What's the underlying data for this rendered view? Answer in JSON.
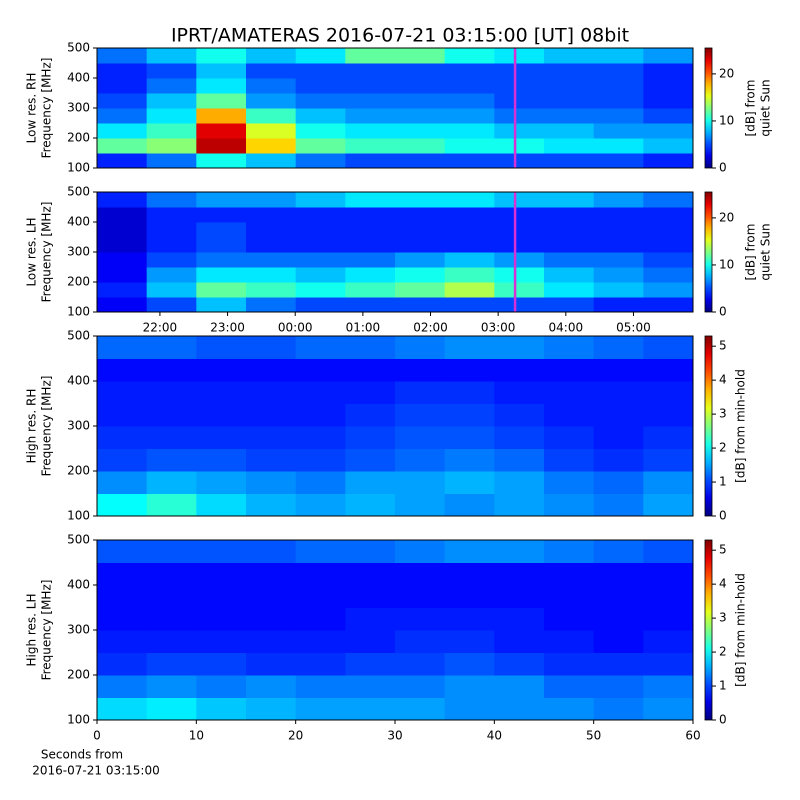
{
  "title": "IPRT/AMATERAS 2016-07-21 03:15:00 [UT]   08bit",
  "chart_data": [
    {
      "type": "heatmap",
      "ylabel": [
        "Low res. RH",
        "Frequency [MHz]"
      ],
      "xlim": [
        21.07,
        29.88
      ],
      "ylim": [
        100,
        500
      ],
      "yticks": [
        100,
        200,
        300,
        400,
        500
      ],
      "marker_x": 27.25,
      "marker_color": "#d630d6",
      "colormap": "jet",
      "clim": [
        0,
        25.5
      ],
      "cticks": [
        0,
        10,
        20
      ],
      "colorbar_label": [
        "[dB] from",
        "quiet Sun"
      ],
      "z": [
        [
          4,
          6,
          10,
          8,
          6,
          5,
          5,
          5,
          5,
          5,
          5,
          4
        ],
        [
          12,
          13,
          24,
          17,
          12,
          11,
          11,
          10,
          10,
          9,
          9,
          8
        ],
        [
          9,
          11,
          23,
          15,
          10,
          9,
          9,
          9,
          8,
          8,
          7,
          7
        ],
        [
          6,
          9,
          18,
          11,
          8,
          7,
          7,
          7,
          6,
          6,
          6,
          5
        ],
        [
          5,
          8,
          12,
          7,
          6,
          6,
          6,
          6,
          5,
          5,
          5,
          4
        ],
        [
          4,
          6,
          9,
          6,
          5,
          5,
          5,
          5,
          5,
          5,
          5,
          4
        ],
        [
          4,
          5,
          8,
          5,
          5,
          5,
          5,
          5,
          5,
          5,
          5,
          4
        ],
        [
          6,
          8,
          10,
          8,
          9,
          12,
          12,
          10,
          9,
          8,
          8,
          7
        ]
      ]
    },
    {
      "type": "heatmap",
      "ylabel": [
        "Low res. LH",
        "Frequency [MHz]"
      ],
      "xlim": [
        21.07,
        29.88
      ],
      "ylim": [
        100,
        500
      ],
      "yticks": [
        100,
        200,
        300,
        400,
        500
      ],
      "xticks": [
        {
          "value": 22,
          "label": "22:00"
        },
        {
          "value": 23,
          "label": "23:00"
        },
        {
          "value": 24,
          "label": "00:00"
        },
        {
          "value": 25,
          "label": "01:00"
        },
        {
          "value": 26,
          "label": "02:00"
        },
        {
          "value": 27,
          "label": "03:00"
        },
        {
          "value": 28,
          "label": "04:00"
        },
        {
          "value": 29,
          "label": "05:00"
        }
      ],
      "marker_x": 27.25,
      "marker_color": "#d630d6",
      "colormap": "jet",
      "clim": [
        0,
        25.5
      ],
      "cticks": [
        0,
        10,
        20
      ],
      "colorbar_label": [
        "[dB] from",
        "quiet Sun"
      ],
      "z": [
        [
          3,
          5,
          8,
          6,
          5,
          5,
          5,
          5,
          5,
          5,
          4,
          4
        ],
        [
          4,
          8,
          12,
          11,
          10,
          11,
          12,
          14,
          11,
          9,
          8,
          7
        ],
        [
          3,
          7,
          9,
          9,
          8,
          9,
          10,
          11,
          10,
          8,
          7,
          6
        ],
        [
          3,
          5,
          6,
          6,
          6,
          6,
          7,
          8,
          7,
          6,
          6,
          5
        ],
        [
          2,
          4,
          5,
          4,
          4,
          4,
          4,
          4,
          4,
          4,
          4,
          4
        ],
        [
          2,
          4,
          5,
          4,
          4,
          4,
          4,
          4,
          4,
          4,
          4,
          4
        ],
        [
          2,
          4,
          4,
          4,
          4,
          4,
          4,
          4,
          4,
          4,
          4,
          4
        ],
        [
          4,
          6,
          7,
          7,
          8,
          9,
          9,
          9,
          8,
          8,
          7,
          6
        ]
      ]
    },
    {
      "type": "heatmap",
      "ylabel": [
        "High res. RH",
        "Frequency [MHz]"
      ],
      "xlim": [
        0,
        60
      ],
      "ylim": [
        100,
        500
      ],
      "yticks": [
        100,
        200,
        300,
        400,
        500
      ],
      "colormap": "jet",
      "clim": [
        0,
        5.3
      ],
      "cticks": [
        0,
        1,
        2,
        3,
        4,
        5
      ],
      "colorbar_label": [
        "[dB] from min-hold"
      ],
      "z": [
        [
          2.0,
          2.2,
          1.8,
          1.6,
          1.5,
          1.6,
          1.5,
          1.4,
          1.5,
          1.4,
          1.3,
          1.5
        ],
        [
          1.4,
          1.6,
          1.5,
          1.4,
          1.3,
          1.5,
          1.5,
          1.6,
          1.5,
          1.3,
          1.2,
          1.4
        ],
        [
          1.0,
          1.1,
          1.1,
          1.0,
          1.0,
          1.1,
          1.2,
          1.3,
          1.2,
          1.0,
          0.9,
          1.0
        ],
        [
          0.9,
          0.9,
          0.9,
          0.9,
          0.9,
          1.0,
          1.1,
          1.1,
          1.0,
          0.9,
          0.8,
          0.9
        ],
        [
          0.8,
          0.8,
          0.8,
          0.8,
          0.8,
          0.9,
          1.0,
          1.0,
          0.9,
          0.8,
          0.8,
          0.8
        ],
        [
          0.8,
          0.8,
          0.8,
          0.8,
          0.8,
          0.8,
          0.9,
          0.9,
          0.8,
          0.8,
          0.8,
          0.8
        ],
        [
          0.7,
          0.7,
          0.7,
          0.7,
          0.7,
          0.7,
          0.7,
          0.7,
          0.7,
          0.7,
          0.7,
          0.7
        ],
        [
          1.2,
          1.2,
          1.1,
          1.1,
          1.2,
          1.2,
          1.3,
          1.4,
          1.4,
          1.3,
          1.2,
          1.1
        ]
      ]
    },
    {
      "type": "heatmap",
      "ylabel": [
        "High res. LH",
        "Frequency [MHz]"
      ],
      "xlim": [
        0,
        60
      ],
      "ylim": [
        100,
        500
      ],
      "yticks": [
        100,
        200,
        300,
        400,
        500
      ],
      "xticks": [
        0,
        10,
        20,
        30,
        40,
        50,
        60
      ],
      "xlabel": [
        "Seconds from",
        "2016-07-21 03:15:00"
      ],
      "colormap": "jet",
      "clim": [
        0,
        5.3
      ],
      "cticks": [
        0,
        1,
        2,
        3,
        4,
        5
      ],
      "colorbar_label": [
        "[dB] from min-hold"
      ],
      "z": [
        [
          1.8,
          1.9,
          1.7,
          1.6,
          1.5,
          1.5,
          1.5,
          1.4,
          1.4,
          1.4,
          1.3,
          1.4
        ],
        [
          1.3,
          1.4,
          1.3,
          1.4,
          1.3,
          1.3,
          1.3,
          1.4,
          1.4,
          1.2,
          1.2,
          1.3
        ],
        [
          0.9,
          1.0,
          1.0,
          0.9,
          0.9,
          1.0,
          1.0,
          1.1,
          1.0,
          0.9,
          0.9,
          0.9
        ],
        [
          0.8,
          0.8,
          0.8,
          0.8,
          0.8,
          0.8,
          0.9,
          0.9,
          0.8,
          0.8,
          0.7,
          0.8
        ],
        [
          0.7,
          0.7,
          0.7,
          0.7,
          0.7,
          0.8,
          0.8,
          0.8,
          0.8,
          0.7,
          0.7,
          0.7
        ],
        [
          0.7,
          0.7,
          0.7,
          0.7,
          0.7,
          0.7,
          0.7,
          0.7,
          0.7,
          0.7,
          0.7,
          0.7
        ],
        [
          0.7,
          0.7,
          0.7,
          0.7,
          0.7,
          0.7,
          0.7,
          0.7,
          0.7,
          0.7,
          0.7,
          0.7
        ],
        [
          1.1,
          1.1,
          1.1,
          1.1,
          1.2,
          1.2,
          1.3,
          1.4,
          1.4,
          1.3,
          1.2,
          1.1
        ]
      ]
    }
  ]
}
